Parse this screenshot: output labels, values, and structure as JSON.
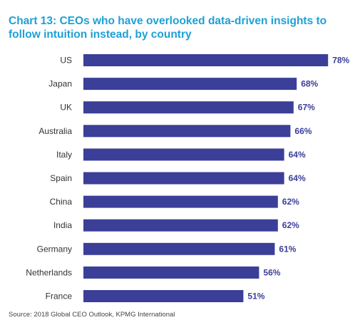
{
  "chart_data": {
    "type": "bar",
    "orientation": "horizontal",
    "title": "Chart 13: CEOs who have overlooked data-driven insights to follow intuition instead, by country",
    "categories": [
      "US",
      "Japan",
      "UK",
      "Australia",
      "Italy",
      "Spain",
      "China",
      "India",
      "Germany",
      "Netherlands",
      "France"
    ],
    "values": [
      78,
      68,
      67,
      66,
      64,
      64,
      62,
      62,
      61,
      56,
      51
    ],
    "value_labels": [
      "78%",
      "68%",
      "67%",
      "66%",
      "64%",
      "64%",
      "62%",
      "62%",
      "61%",
      "56%",
      "51%"
    ],
    "unit": "%",
    "xlim": [
      0,
      100
    ],
    "grid": false,
    "bar_color": "#3b3f98",
    "title_color": "#1fa0d6",
    "source": "Source: 2018 Global CEO Outlook, KPMG International"
  }
}
